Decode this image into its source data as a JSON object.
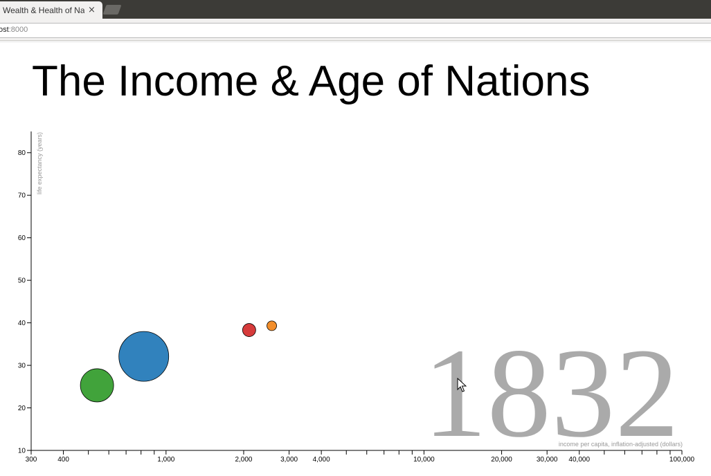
{
  "browser": {
    "tab_title": "Wealth & Health of Nations",
    "tab_close": "×",
    "url_host": "ost",
    "url_port": ":8000"
  },
  "page": {
    "title": "The Income & Age of Nations"
  },
  "colors": {
    "blue": "#3182bd",
    "green": "#41a33b",
    "red": "#d63b3b",
    "orange": "#f28e2b",
    "year": "#aaaaaa"
  },
  "chart_data": {
    "type": "scatter",
    "title": "The Income & Age of Nations",
    "xlabel": "income per capita, inflation-adjusted (dollars)",
    "ylabel": "life expectancy (years)",
    "xscale": "log",
    "xlim": [
      300,
      100000
    ],
    "ylim": [
      10,
      85
    ],
    "x_ticks": [
      300,
      400,
      500,
      600,
      700,
      800,
      900,
      1000,
      2000,
      3000,
      4000,
      5000,
      6000,
      7000,
      8000,
      9000,
      10000,
      20000,
      30000,
      40000,
      50000,
      60000,
      70000,
      80000,
      90000,
      100000
    ],
    "x_tick_labels": {
      "300": "300",
      "400": "400",
      "1000": "1,000",
      "2000": "2,000",
      "3000": "3,000",
      "4000": "4,000",
      "10000": "10,000",
      "20000": "20,000",
      "30000": "30,000",
      "40000": "40,000",
      "100000": "100,000"
    },
    "y_ticks": [
      10,
      20,
      30,
      40,
      50,
      60,
      70,
      80
    ],
    "y_tick_labels": [
      "10",
      "20",
      "30",
      "40",
      "50",
      "60",
      "70",
      "80"
    ],
    "year": "1832",
    "points": [
      {
        "x": 820,
        "y": 32.1,
        "r": 36,
        "color": "#3182bd"
      },
      {
        "x": 540,
        "y": 25.3,
        "r": 24,
        "color": "#41a33b"
      },
      {
        "x": 2100,
        "y": 38.3,
        "r": 9.5,
        "color": "#d63b3b"
      },
      {
        "x": 2570,
        "y": 39.3,
        "r": 7,
        "color": "#f28e2b"
      }
    ],
    "grid": false,
    "legend": "none"
  }
}
